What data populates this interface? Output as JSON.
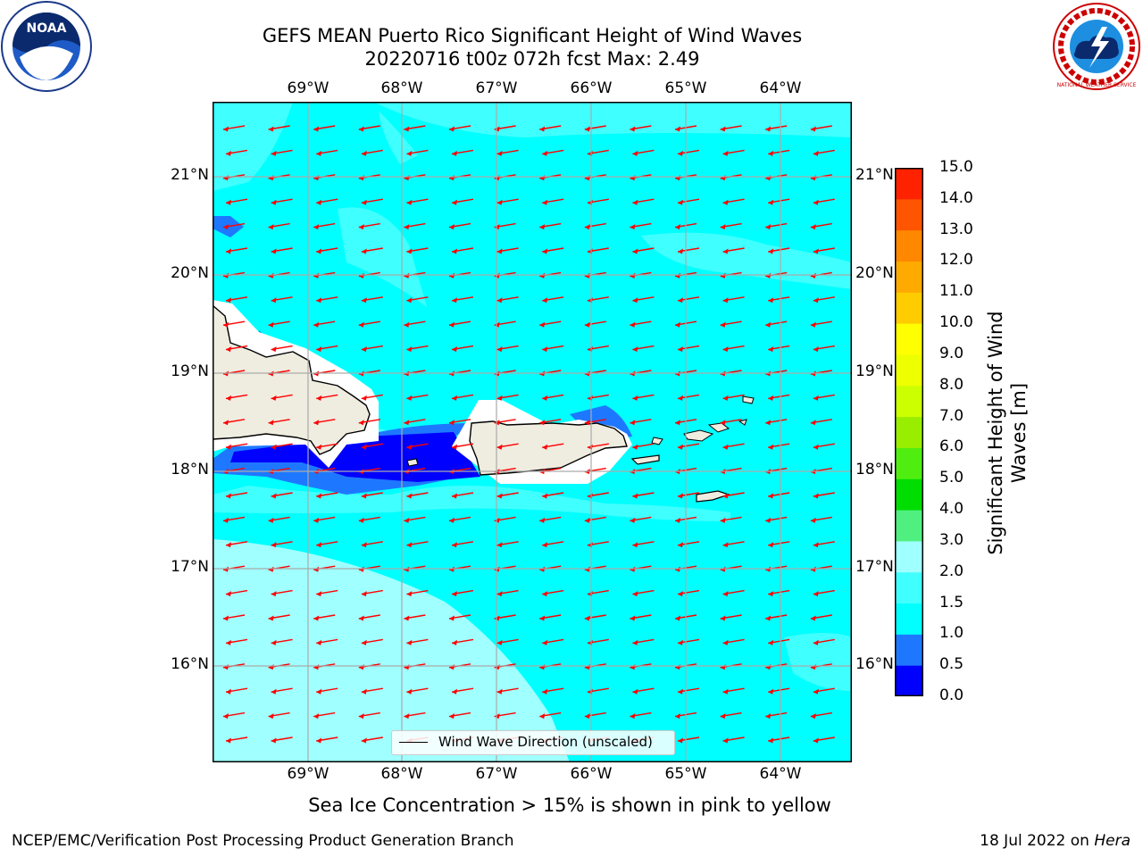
{
  "header": {
    "title_line1": "GEFS MEAN Puerto Rico Significant Height of Wind Waves",
    "title_line2": "20220716 t00z 072h fcst   Max: 2.49"
  },
  "logos": {
    "left": {
      "icon": "noaa-logo",
      "text": "NOAA"
    },
    "right": {
      "icon": "nws-logo",
      "text": "NATIONAL WEATHER SERVICE"
    }
  },
  "map": {
    "lon_labels": [
      "69°W",
      "68°W",
      "67°W",
      "66°W",
      "65°W",
      "64°W"
    ],
    "lat_labels": [
      "21°N",
      "20°N",
      "19°N",
      "18°N",
      "17°N",
      "16°N"
    ],
    "legend": "Wind Wave Direction (unscaled)",
    "colors": {
      "ocean_1_1_5": "#00ffff",
      "ocean_1_5_2": "#40ffff",
      "ocean_2_3": "#a0ffff",
      "shallow_0_5_1": "#1e78ff",
      "shallow_0_0_5": "#0000ff",
      "land": "#efece0",
      "arrow": "#ff0000"
    }
  },
  "colorbar": {
    "label": "Significant Height of Wind Waves [m]",
    "ticks": [
      "0.0",
      "0.5",
      "1.0",
      "1.5",
      "2.0",
      "3.0",
      "4.0",
      "5.0",
      "6.0",
      "7.0",
      "8.0",
      "9.0",
      "10.0",
      "11.0",
      "12.0",
      "13.0",
      "14.0",
      "15.0"
    ],
    "colors": [
      "#0000ff",
      "#1e78ff",
      "#00ffff",
      "#40ffff",
      "#a0ffff",
      "#50f080",
      "#00dd00",
      "#50ee10",
      "#99ee00",
      "#ccff00",
      "#eeff00",
      "#ffff00",
      "#ffcc00",
      "#ffaa00",
      "#ff8800",
      "#ff5500",
      "#ff2200",
      "#ff0000"
    ]
  },
  "footnote": "Sea Ice Concentration > 15% is shown in pink to yellow",
  "footer": {
    "left": "NCEP/EMC/Verification Post Processing Product Generation Branch",
    "right_prefix": "18 Jul 2022 on ",
    "right_host": "Hera"
  }
}
